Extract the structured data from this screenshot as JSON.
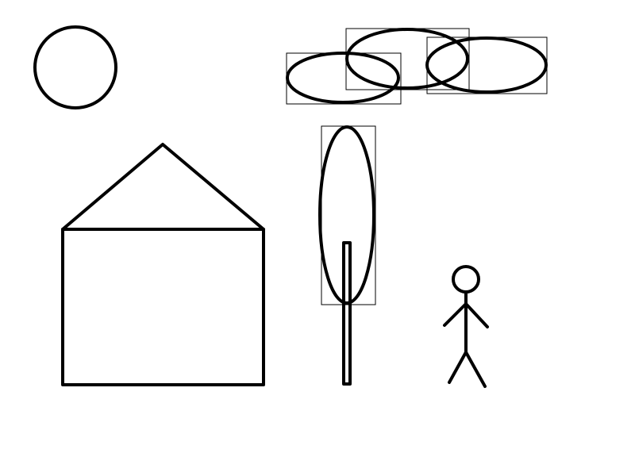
{
  "scene": {
    "background": "#ffffff",
    "stroke_color": "#000000",
    "elements": {
      "sun": "circle",
      "cloud_count": 3,
      "tree": "ellipse-crown-with-trunk",
      "house": "square-body-with-triangular-roof",
      "person": "stick-figure"
    }
  }
}
